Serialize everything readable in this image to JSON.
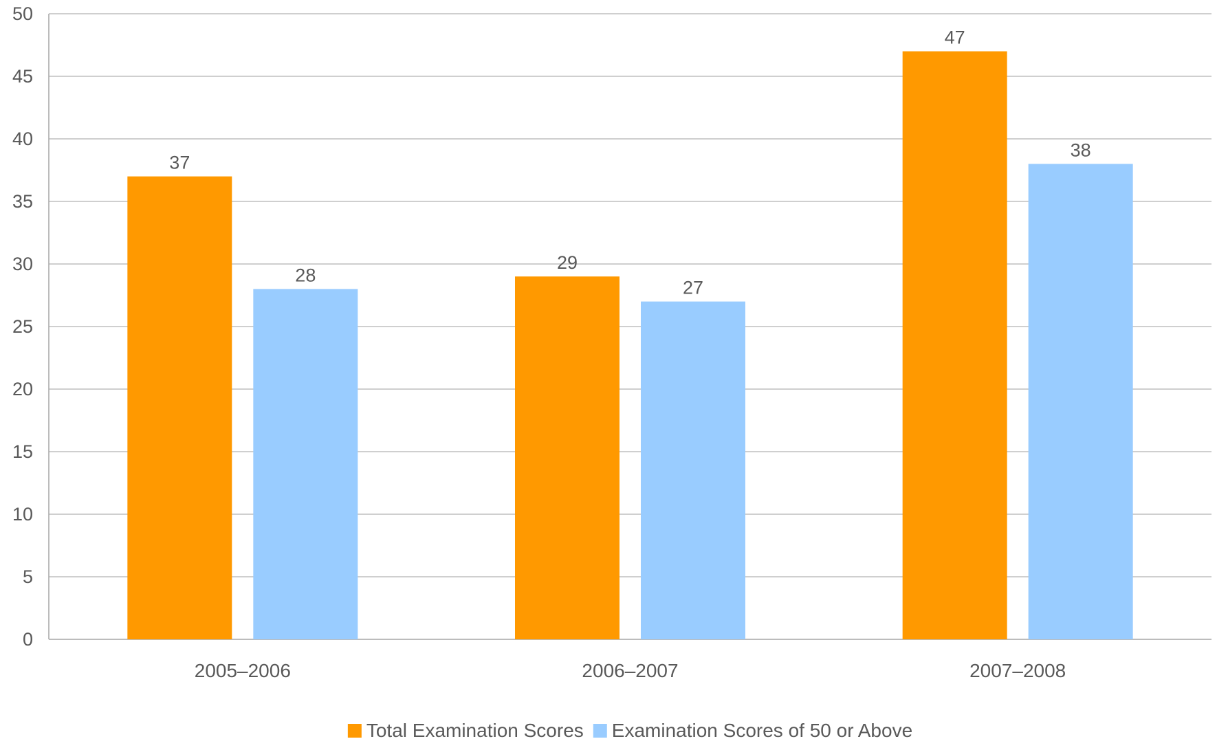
{
  "chart_data": {
    "type": "bar",
    "title": "",
    "xlabel": "",
    "ylabel": "",
    "categories": [
      "2005–2006",
      "2006–2007",
      "2007–2008"
    ],
    "series": [
      {
        "name": "Total Examination Scores",
        "values": [
          37,
          29,
          47
        ],
        "color": "#FF9900"
      },
      {
        "name": "Examination Scores of 50 or Above",
        "values": [
          28,
          27,
          38
        ],
        "color": "#99CCFF"
      }
    ],
    "ylim": [
      0,
      50
    ],
    "yticks": [
      0,
      5,
      10,
      15,
      20,
      25,
      30,
      35,
      40,
      45,
      50
    ],
    "grid": true,
    "legend_position": "bottom",
    "data_labels": true,
    "colors": {
      "text": "#595959",
      "gridline": "#BFBFBF",
      "axis": "#A6A6A6"
    }
  }
}
